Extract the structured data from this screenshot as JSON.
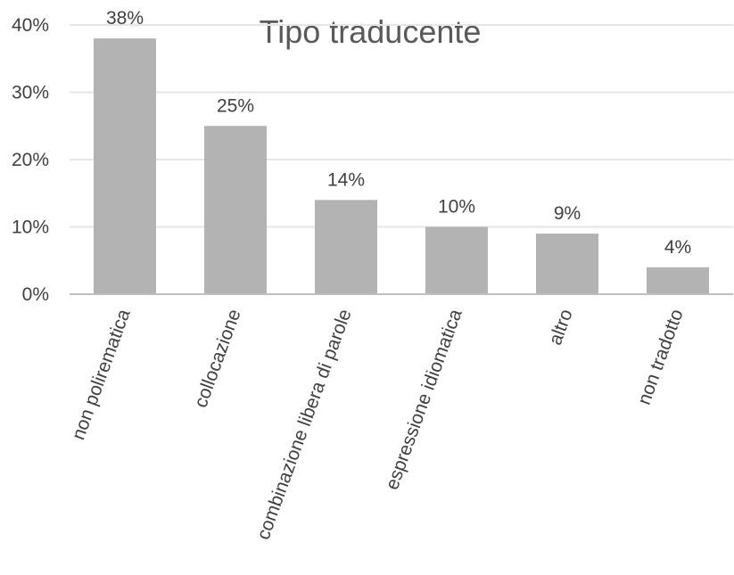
{
  "chart_data": {
    "type": "bar",
    "title": "Tipo traducente",
    "categories": [
      "non polirematica",
      "collocazione",
      "combinazione libera di parole",
      "espressione idiomatica",
      "altro",
      "non tradotto"
    ],
    "values": [
      38,
      25,
      14,
      10,
      9,
      4
    ],
    "data_labels": [
      "38%",
      "25%",
      "14%",
      "10%",
      "9%",
      "4%"
    ],
    "y_ticks": [
      0,
      10,
      20,
      30,
      40
    ],
    "y_tick_labels": [
      "0%",
      "10%",
      "20%",
      "30%",
      "40%"
    ],
    "ylim": [
      0,
      40
    ],
    "xlabel": "",
    "ylabel": "",
    "grid": true,
    "legend": "none",
    "bar_color": "#b3b3b3"
  }
}
